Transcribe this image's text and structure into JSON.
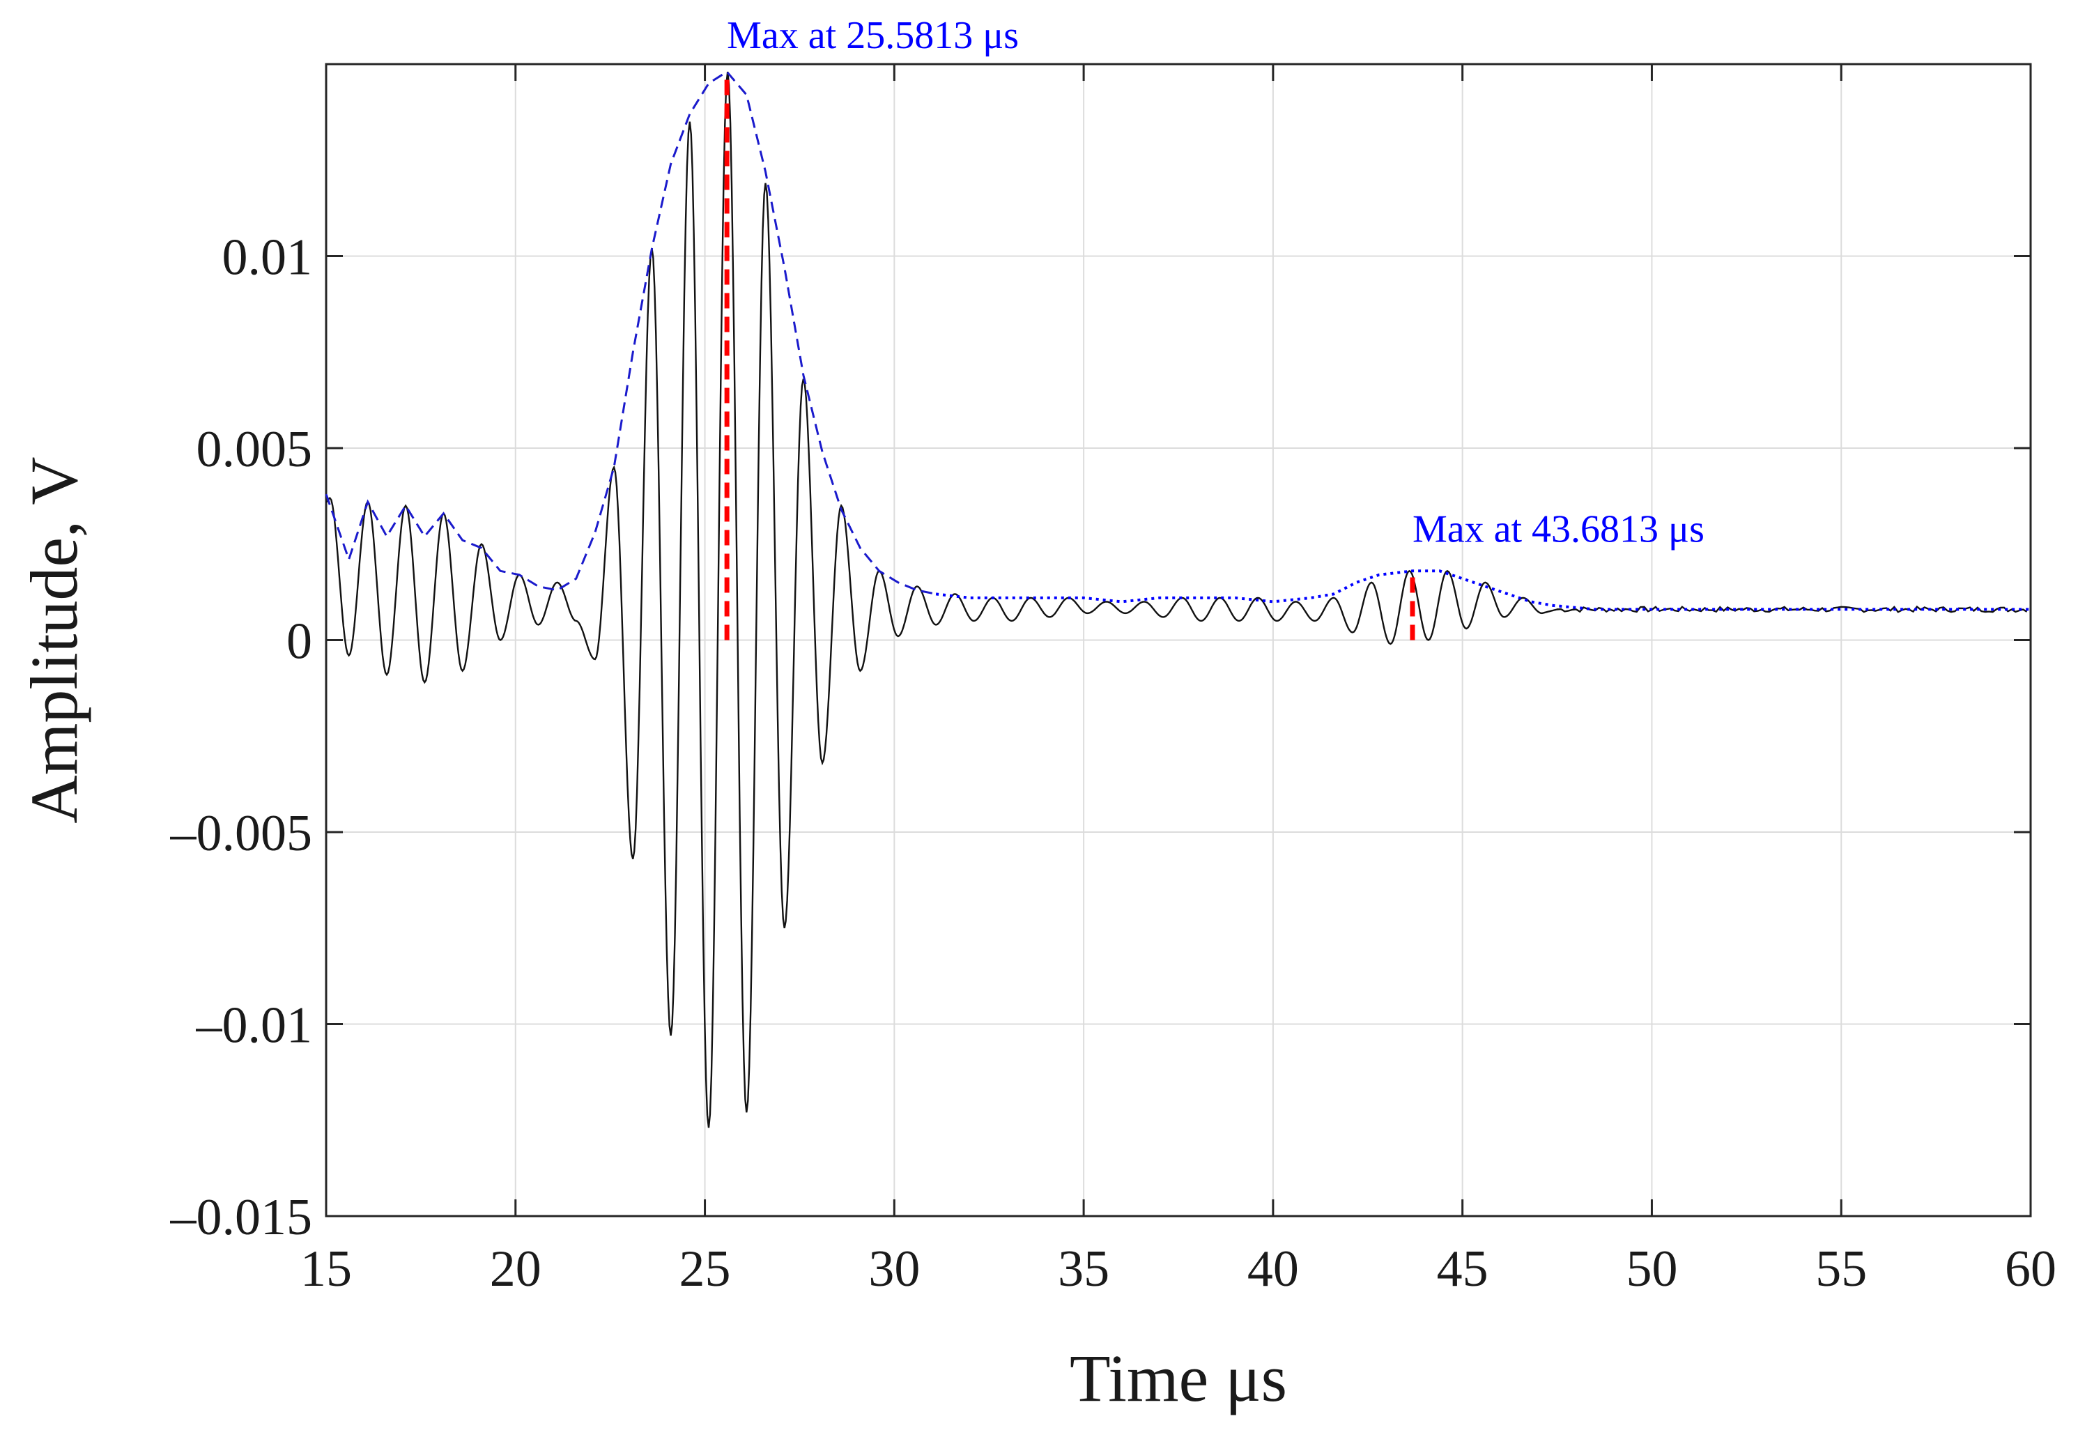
{
  "chart_data": {
    "type": "line",
    "title": "",
    "xlabel": "Time μs",
    "ylabel": "Amplitude, V",
    "xlim": [
      15,
      60
    ],
    "ylim": [
      -0.015,
      0.015
    ],
    "grid": true,
    "x_ticks": [
      15,
      20,
      25,
      30,
      35,
      40,
      45,
      50,
      55,
      60
    ],
    "x_tick_labels": [
      "15",
      "20",
      "25",
      "30",
      "35",
      "40",
      "45",
      "50",
      "55",
      "60"
    ],
    "y_ticks": [
      0.01,
      0.005,
      0,
      -0.005,
      -0.01,
      -0.015
    ],
    "y_tick_labels": [
      "0.01",
      "0.005",
      "0",
      "–0.005",
      "–0.01",
      "–0.015"
    ],
    "colors": {
      "signal": "#111111",
      "envelope_main": "#1a1acc",
      "envelope_tail": "#0000ff",
      "marker": "#ff0000",
      "annotation": "#0000ff"
    },
    "series": [
      {
        "name": "signal",
        "style": "solid",
        "description": "oscillating waveform, period ~1 μs, offset ~0.0008 V",
        "peaks": [
          {
            "t": 15.1,
            "v": 0.0037
          },
          {
            "t": 16.1,
            "v": 0.0036
          },
          {
            "t": 17.1,
            "v": 0.0035
          },
          {
            "t": 18.1,
            "v": 0.0033
          },
          {
            "t": 19.1,
            "v": 0.0025
          },
          {
            "t": 20.1,
            "v": 0.0017
          },
          {
            "t": 21.1,
            "v": 0.0015
          },
          {
            "t": 22.6,
            "v": 0.0045
          },
          {
            "t": 23.6,
            "v": 0.0102
          },
          {
            "t": 24.6,
            "v": 0.0135
          },
          {
            "t": 25.6,
            "v": 0.0148
          },
          {
            "t": 26.6,
            "v": 0.0119
          },
          {
            "t": 27.6,
            "v": 0.0068
          },
          {
            "t": 28.6,
            "v": 0.0035
          },
          {
            "t": 29.6,
            "v": 0.0018
          },
          {
            "t": 30.6,
            "v": 0.0014
          },
          {
            "t": 31.6,
            "v": 0.0012
          },
          {
            "t": 32.6,
            "v": 0.0011
          },
          {
            "t": 33.6,
            "v": 0.0011
          },
          {
            "t": 34.6,
            "v": 0.0011
          },
          {
            "t": 35.6,
            "v": 0.001
          },
          {
            "t": 36.6,
            "v": 0.001
          },
          {
            "t": 37.6,
            "v": 0.0011
          },
          {
            "t": 38.6,
            "v": 0.0011
          },
          {
            "t": 39.6,
            "v": 0.0011
          },
          {
            "t": 40.6,
            "v": 0.001
          },
          {
            "t": 41.6,
            "v": 0.0011
          },
          {
            "t": 42.6,
            "v": 0.0015
          },
          {
            "t": 43.6,
            "v": 0.0018
          },
          {
            "t": 44.6,
            "v": 0.0018
          },
          {
            "t": 45.6,
            "v": 0.0015
          },
          {
            "t": 46.6,
            "v": 0.0011
          }
        ],
        "troughs": [
          {
            "t": 15.6,
            "v": -0.0004
          },
          {
            "t": 16.6,
            "v": -0.0009
          },
          {
            "t": 17.6,
            "v": -0.0011
          },
          {
            "t": 18.6,
            "v": -0.0008
          },
          {
            "t": 19.6,
            "v": 0.0
          },
          {
            "t": 20.6,
            "v": 0.0004
          },
          {
            "t": 21.6,
            "v": 0.0005
          },
          {
            "t": 22.1,
            "v": -0.0005
          },
          {
            "t": 23.1,
            "v": -0.0057
          },
          {
            "t": 24.1,
            "v": -0.0103
          },
          {
            "t": 25.1,
            "v": -0.0127
          },
          {
            "t": 26.1,
            "v": -0.0123
          },
          {
            "t": 27.1,
            "v": -0.0075
          },
          {
            "t": 28.1,
            "v": -0.0032
          },
          {
            "t": 29.1,
            "v": -0.0008
          },
          {
            "t": 30.1,
            "v": 0.0001
          },
          {
            "t": 31.1,
            "v": 0.0004
          },
          {
            "t": 32.1,
            "v": 0.0005
          },
          {
            "t": 33.1,
            "v": 0.0005
          },
          {
            "t": 34.1,
            "v": 0.0006
          },
          {
            "t": 35.1,
            "v": 0.0007
          },
          {
            "t": 36.1,
            "v": 0.0007
          },
          {
            "t": 37.1,
            "v": 0.0006
          },
          {
            "t": 38.1,
            "v": 0.0005
          },
          {
            "t": 39.1,
            "v": 0.0005
          },
          {
            "t": 40.1,
            "v": 0.0005
          },
          {
            "t": 41.1,
            "v": 0.0005
          },
          {
            "t": 42.1,
            "v": 0.0002
          },
          {
            "t": 43.1,
            "v": -0.0001
          },
          {
            "t": 44.1,
            "v": 0.0
          },
          {
            "t": 45.1,
            "v": 0.0003
          },
          {
            "t": 46.1,
            "v": 0.0006
          },
          {
            "t": 47.1,
            "v": 0.0007
          }
        ],
        "tail": {
          "from": 47.5,
          "to": 60,
          "level": 0.0008
        }
      },
      {
        "name": "envelope-1",
        "style": "dashed",
        "points": [
          [
            15.0,
            0.0038
          ],
          [
            15.6,
            0.0021
          ],
          [
            16.1,
            0.0036
          ],
          [
            16.6,
            0.0027
          ],
          [
            17.1,
            0.0035
          ],
          [
            17.6,
            0.0027
          ],
          [
            18.1,
            0.0033
          ],
          [
            18.6,
            0.0026
          ],
          [
            19.1,
            0.0024
          ],
          [
            19.6,
            0.0018
          ],
          [
            20.1,
            0.0017
          ],
          [
            20.6,
            0.0014
          ],
          [
            21.1,
            0.0013
          ],
          [
            21.6,
            0.0016
          ],
          [
            22.1,
            0.0028
          ],
          [
            22.6,
            0.0045
          ],
          [
            23.1,
            0.0075
          ],
          [
            23.6,
            0.0102
          ],
          [
            24.1,
            0.0124
          ],
          [
            24.6,
            0.0137
          ],
          [
            25.1,
            0.0145
          ],
          [
            25.58,
            0.0148
          ],
          [
            26.1,
            0.0142
          ],
          [
            26.6,
            0.0122
          ],
          [
            27.1,
            0.0097
          ],
          [
            27.6,
            0.0069
          ],
          [
            28.1,
            0.0049
          ],
          [
            28.6,
            0.0034
          ],
          [
            29.1,
            0.0024
          ],
          [
            29.6,
            0.0018
          ],
          [
            30.1,
            0.0015
          ],
          [
            30.6,
            0.0013
          ],
          [
            31.1,
            0.0012
          ]
        ]
      },
      {
        "name": "envelope-2",
        "style": "dotted",
        "points": [
          [
            31.1,
            0.0012
          ],
          [
            32.0,
            0.0011
          ],
          [
            33.0,
            0.0011
          ],
          [
            34.0,
            0.0011
          ],
          [
            35.0,
            0.0011
          ],
          [
            36.0,
            0.001
          ],
          [
            37.0,
            0.0011
          ],
          [
            38.0,
            0.0011
          ],
          [
            39.0,
            0.0011
          ],
          [
            40.0,
            0.001
          ],
          [
            41.0,
            0.0011
          ],
          [
            41.6,
            0.0012
          ],
          [
            42.2,
            0.0015
          ],
          [
            42.8,
            0.0017
          ],
          [
            43.68,
            0.0018
          ],
          [
            44.4,
            0.0018
          ],
          [
            45.0,
            0.0016
          ],
          [
            45.6,
            0.0014
          ],
          [
            46.2,
            0.0012
          ],
          [
            46.8,
            0.001
          ],
          [
            47.4,
            0.0009
          ],
          [
            48.5,
            0.0008
          ],
          [
            50.0,
            0.0008
          ],
          [
            52.0,
            0.0008
          ],
          [
            54.0,
            0.0008
          ],
          [
            56.0,
            0.0008
          ],
          [
            58.0,
            0.0008
          ],
          [
            60.0,
            0.0008
          ]
        ]
      }
    ],
    "markers": [
      {
        "name": "max-marker-1",
        "t": 25.5813,
        "v": 0.0148
      },
      {
        "name": "max-marker-2",
        "t": 43.6813,
        "v": 0.0018
      }
    ],
    "annotations": [
      {
        "text": "Max at 25.5813 μs",
        "t": 25.5813,
        "v": 0.0148
      },
      {
        "text": "Max at 43.6813 μs",
        "t": 43.6813,
        "v": 0.0018
      }
    ]
  }
}
